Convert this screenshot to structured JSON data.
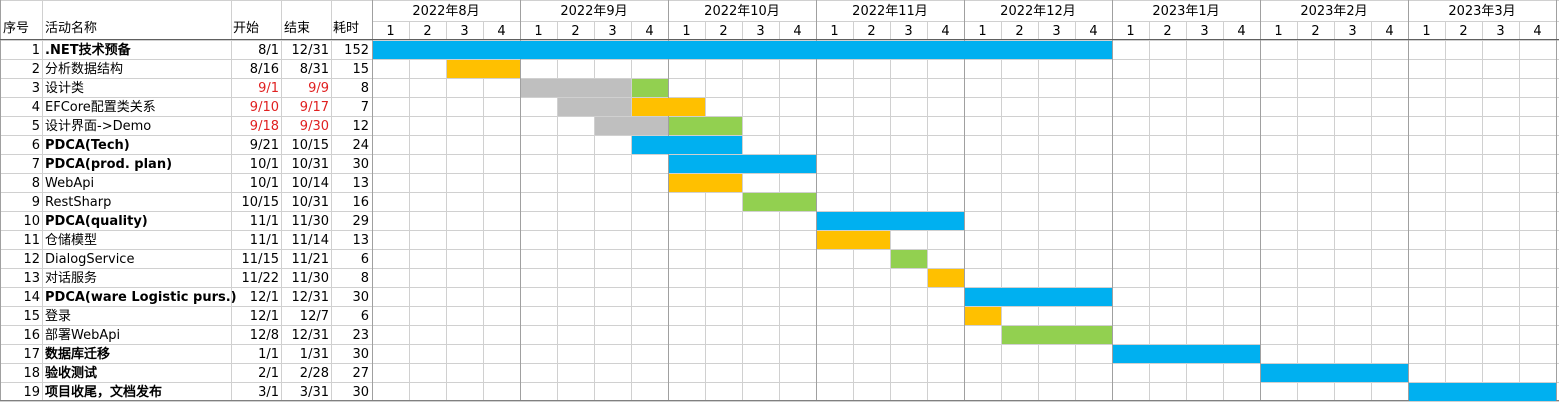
{
  "headers": {
    "seq": "序号",
    "name": "活动名称",
    "start": "开始",
    "end": "结束",
    "duration": "耗时"
  },
  "months": [
    "2022年8月",
    "2022年9月",
    "2022年10月",
    "2022年11月",
    "2022年12月",
    "2023年1月",
    "2023年2月",
    "2023年3月"
  ],
  "weeks": [
    "1",
    "2",
    "3",
    "4"
  ],
  "colors": {
    "summary": "#00b0f0",
    "work": "#ffc000",
    "done": "#92d050",
    "planned": "#bfbfbf",
    "alert_text": "#e02020",
    "grid": "#d0d0d0"
  },
  "chart_data": {
    "type": "gantt",
    "timeline_unit": "week",
    "tasks": [
      {
        "seq": "1",
        "name": ".NET技术预备",
        "start": "8/1",
        "end": "12/31",
        "duration": "152",
        "bold": true,
        "bars": [
          {
            "from": 0,
            "to": 20,
            "color": "summary"
          }
        ]
      },
      {
        "seq": "2",
        "name": "分析数据结构",
        "start": "8/16",
        "end": "8/31",
        "duration": "15",
        "bars": [
          {
            "from": 2,
            "to": 4,
            "color": "work"
          }
        ]
      },
      {
        "seq": "3",
        "name": "设计类",
        "start": "9/1",
        "end": "9/9",
        "duration": "8",
        "red": true,
        "bars": [
          {
            "from": 4,
            "to": 7,
            "color": "planned"
          },
          {
            "from": 7,
            "to": 8,
            "color": "done"
          }
        ]
      },
      {
        "seq": "4",
        "name": "EFCore配置类关系",
        "start": "9/10",
        "end": "9/17",
        "duration": "7",
        "red": true,
        "bars": [
          {
            "from": 5,
            "to": 7,
            "color": "planned"
          },
          {
            "from": 7,
            "to": 9,
            "color": "work"
          }
        ]
      },
      {
        "seq": "5",
        "name": "设计界面->Demo",
        "start": "9/18",
        "end": "9/30",
        "duration": "12",
        "red": true,
        "bars": [
          {
            "from": 6,
            "to": 8,
            "color": "planned"
          },
          {
            "from": 8,
            "to": 10,
            "color": "done"
          }
        ]
      },
      {
        "seq": "6",
        "name": "PDCA(Tech)",
        "start": "9/21",
        "end": "10/15",
        "duration": "24",
        "bold": true,
        "bars": [
          {
            "from": 7,
            "to": 10,
            "color": "summary"
          }
        ]
      },
      {
        "seq": "7",
        "name": "PDCA(prod. plan)",
        "start": "10/1",
        "end": "10/31",
        "duration": "30",
        "bold": true,
        "bars": [
          {
            "from": 8,
            "to": 12,
            "color": "summary"
          }
        ]
      },
      {
        "seq": "8",
        "name": "WebApi",
        "start": "10/1",
        "end": "10/14",
        "duration": "13",
        "bars": [
          {
            "from": 8,
            "to": 10,
            "color": "work"
          }
        ]
      },
      {
        "seq": "9",
        "name": "RestSharp",
        "start": "10/15",
        "end": "10/31",
        "duration": "16",
        "bars": [
          {
            "from": 10,
            "to": 12,
            "color": "done"
          }
        ]
      },
      {
        "seq": "10",
        "name": "PDCA(quality)",
        "start": "11/1",
        "end": "11/30",
        "duration": "29",
        "bold": true,
        "bars": [
          {
            "from": 12,
            "to": 16,
            "color": "summary"
          }
        ]
      },
      {
        "seq": "11",
        "name": "仓储模型",
        "start": "11/1",
        "end": "11/14",
        "duration": "13",
        "bars": [
          {
            "from": 12,
            "to": 14,
            "color": "work"
          }
        ]
      },
      {
        "seq": "12",
        "name": "DialogService",
        "start": "11/15",
        "end": "11/21",
        "duration": "6",
        "bars": [
          {
            "from": 14,
            "to": 15,
            "color": "done"
          }
        ]
      },
      {
        "seq": "13",
        "name": "对话服务",
        "start": "11/22",
        "end": "11/30",
        "duration": "8",
        "bars": [
          {
            "from": 15,
            "to": 16,
            "color": "work"
          }
        ]
      },
      {
        "seq": "14",
        "name": "PDCA(ware Logistic purs.)",
        "start": "12/1",
        "end": "12/31",
        "duration": "30",
        "bold": true,
        "bars": [
          {
            "from": 16,
            "to": 20,
            "color": "summary"
          }
        ]
      },
      {
        "seq": "15",
        "name": "登录",
        "start": "12/1",
        "end": "12/7",
        "duration": "6",
        "bars": [
          {
            "from": 16,
            "to": 17,
            "color": "work"
          }
        ]
      },
      {
        "seq": "16",
        "name": "部署WebApi",
        "start": "12/8",
        "end": "12/31",
        "duration": "23",
        "bars": [
          {
            "from": 17,
            "to": 20,
            "color": "done"
          }
        ]
      },
      {
        "seq": "17",
        "name": "数据库迁移",
        "start": "1/1",
        "end": "1/31",
        "duration": "30",
        "bold": true,
        "bars": [
          {
            "from": 20,
            "to": 24,
            "color": "summary"
          }
        ]
      },
      {
        "seq": "18",
        "name": "验收测试",
        "start": "2/1",
        "end": "2/28",
        "duration": "27",
        "bold": true,
        "bars": [
          {
            "from": 24,
            "to": 28,
            "color": "summary"
          }
        ]
      },
      {
        "seq": "19",
        "name": "项目收尾，文档发布",
        "start": "3/1",
        "end": "3/31",
        "duration": "30",
        "bold": true,
        "bars": [
          {
            "from": 28,
            "to": 32,
            "color": "summary"
          }
        ]
      }
    ]
  }
}
